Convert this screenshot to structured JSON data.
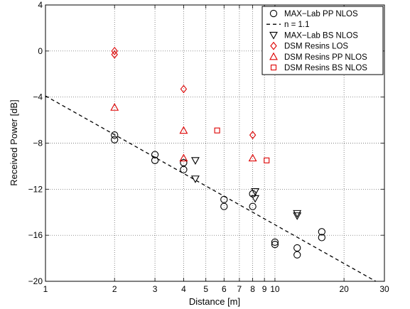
{
  "chart_data": {
    "type": "scatter",
    "xlabel": "Distance [m]",
    "ylabel": "Received Power [dB]",
    "x_scale": "log",
    "xlim": [
      1,
      30
    ],
    "ylim": [
      -20,
      4
    ],
    "x_ticks": [
      1,
      2,
      3,
      4,
      5,
      6,
      7,
      8,
      9,
      10,
      20,
      30
    ],
    "x_tick_labels": [
      "1",
      "2",
      "3",
      "4",
      "5",
      "6",
      "7",
      "8",
      "9",
      "10",
      "20",
      "30"
    ],
    "y_ticks": [
      -20,
      -16,
      -12,
      -8,
      -4,
      0,
      4
    ],
    "y_tick_labels": [
      "−20",
      "−16",
      "−12",
      "−8",
      "−4",
      "0",
      "4"
    ],
    "grid": true,
    "legend_position": "top-right",
    "series": [
      {
        "name": "MAX−Lab PP NLOS",
        "marker": "circle",
        "color": "#000000",
        "points": [
          [
            2,
            -7.3
          ],
          [
            2,
            -7.7
          ],
          [
            3,
            -9.0
          ],
          [
            3,
            -9.5
          ],
          [
            4,
            -9.7
          ],
          [
            4,
            -10.3
          ],
          [
            6,
            -12.9
          ],
          [
            6,
            -13.5
          ],
          [
            8,
            -12.4
          ],
          [
            8,
            -13.5
          ],
          [
            10,
            -16.6
          ],
          [
            10,
            -16.8
          ],
          [
            12.5,
            -17.1
          ],
          [
            12.5,
            -17.7
          ],
          [
            16,
            -15.7
          ],
          [
            16,
            -16.2
          ]
        ]
      },
      {
        "name": "n = 1.1",
        "type": "line",
        "dash": true,
        "color": "#000000",
        "points": [
          [
            1,
            -3.9
          ],
          [
            27.5,
            -20.0
          ]
        ]
      },
      {
        "name": "MAX−Lab BS NLOS",
        "marker": "triangle-down",
        "color": "#000000",
        "points": [
          [
            4.5,
            -9.5
          ],
          [
            4.5,
            -11.1
          ],
          [
            8.2,
            -12.2
          ],
          [
            8.2,
            -12.8
          ],
          [
            12.5,
            -14.1
          ],
          [
            12.5,
            -14.3
          ]
        ]
      },
      {
        "name": "DSM Resins LOS",
        "marker": "diamond",
        "color": "#dd0000",
        "points": [
          [
            2,
            0.0
          ],
          [
            2,
            -0.3
          ],
          [
            4,
            -3.3
          ],
          [
            8,
            -7.3
          ]
        ]
      },
      {
        "name": "DSM Resins PP NLOS",
        "marker": "triangle-up",
        "color": "#dd0000",
        "points": [
          [
            2,
            -4.9
          ],
          [
            4,
            -6.9
          ],
          [
            4,
            -9.3
          ],
          [
            8,
            -9.3
          ]
        ]
      },
      {
        "name": "DSM Resins BS NLOS",
        "marker": "square",
        "color": "#dd0000",
        "points": [
          [
            5.6,
            -6.9
          ],
          [
            9.2,
            -9.5
          ]
        ]
      }
    ]
  }
}
